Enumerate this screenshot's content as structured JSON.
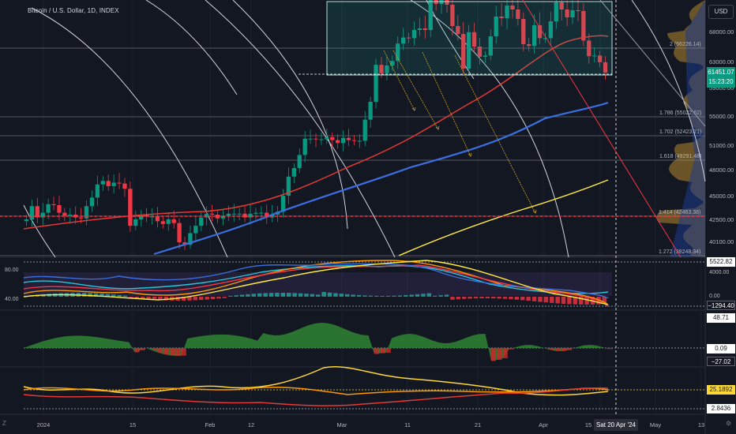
{
  "header": {
    "title": "Bitcoin / U.S. Dollar, 1D, INDEX",
    "currency_button": "USD"
  },
  "price_axis": {
    "labels": [
      "68000.00",
      "63000.00",
      "59000.00",
      "55000.00",
      "51000.00",
      "48000.00",
      "45000.00",
      "42500.00",
      "40100.00"
    ],
    "current_price": "61451.07",
    "countdown": "15:23:20"
  },
  "fib_levels": [
    {
      "label": "2 (66226.14)"
    },
    {
      "label": "1.786 (55022.62)"
    },
    {
      "label": "1.702 (52423.21)"
    },
    {
      "label": "1.618 (49291.48)"
    },
    {
      "label": "1.414 (42463.38)"
    },
    {
      "label": "1.272 (38248.34)"
    }
  ],
  "oscillator1": {
    "left_labels": [
      "80.00",
      "40.00"
    ],
    "right_labels": [
      "4000.00",
      "0.00"
    ],
    "tag_top": "5522.82",
    "tag_bottom": "−1294.40"
  },
  "oscillator2": {
    "tag_top": "48.71",
    "tag_mid": "0.09",
    "tag_bottom": "−27.02"
  },
  "oscillator3": {
    "tag_top": "25.1892",
    "tag_bottom": "2.8436"
  },
  "time_axis": {
    "labels": [
      "2024",
      "15",
      "Feb",
      "12",
      "Mar",
      "11",
      "21",
      "Apr",
      "15",
      "May",
      "13"
    ],
    "crosshair_date": "Sat 20 Apr '24"
  },
  "colors": {
    "bull": "#089981",
    "bear": "#f23645",
    "ma_red": "#e53935",
    "ma_blue": "#3b6fe0",
    "ma_yellow": "#ffeb3b",
    "background": "#131722"
  }
}
